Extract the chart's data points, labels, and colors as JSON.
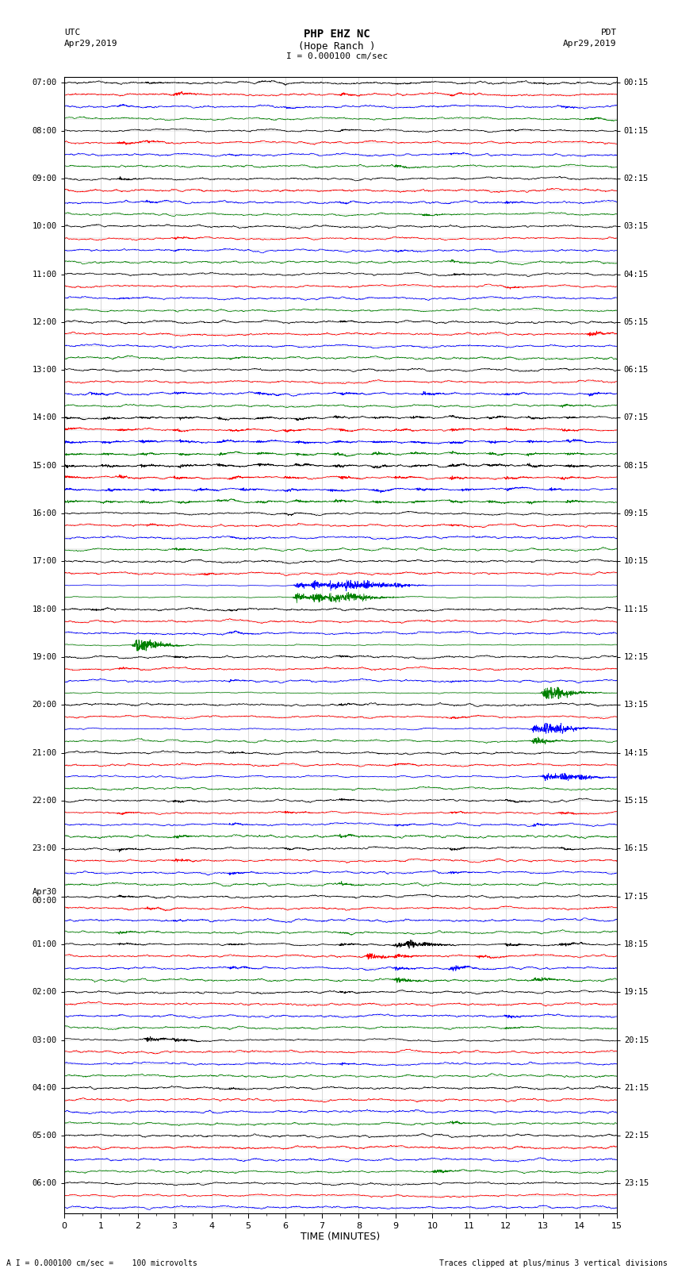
{
  "title_line1": "PHP EHZ NC",
  "title_line2": "(Hope Ranch )",
  "scale_label": "I = 0.000100 cm/sec",
  "bottom_left": "A I = 0.000100 cm/sec =    100 microvolts",
  "bottom_right": "Traces clipped at plus/minus 3 vertical divisions",
  "xlabel": "TIME (MINUTES)",
  "xmin": 0,
  "xmax": 15,
  "xticks": [
    0,
    1,
    2,
    3,
    4,
    5,
    6,
    7,
    8,
    9,
    10,
    11,
    12,
    13,
    14,
    15
  ],
  "colors_cycle": [
    "black",
    "red",
    "blue",
    "green"
  ],
  "utc_times_list": [
    "07:00",
    "08:00",
    "09:00",
    "10:00",
    "11:00",
    "12:00",
    "13:00",
    "14:00",
    "15:00",
    "16:00",
    "17:00",
    "18:00",
    "19:00",
    "20:00",
    "21:00",
    "22:00",
    "23:00",
    "Apr30\n00:00",
    "01:00",
    "02:00",
    "03:00",
    "04:00",
    "05:00",
    "06:00"
  ],
  "pdt_times_list": [
    "00:15",
    "01:15",
    "02:15",
    "03:15",
    "04:15",
    "05:15",
    "06:15",
    "07:15",
    "08:15",
    "09:15",
    "10:15",
    "11:15",
    "12:15",
    "13:15",
    "14:15",
    "15:15",
    "16:15",
    "17:15",
    "18:15",
    "19:15",
    "20:15",
    "21:15",
    "22:15",
    "23:15"
  ],
  "n_rows": 95
}
